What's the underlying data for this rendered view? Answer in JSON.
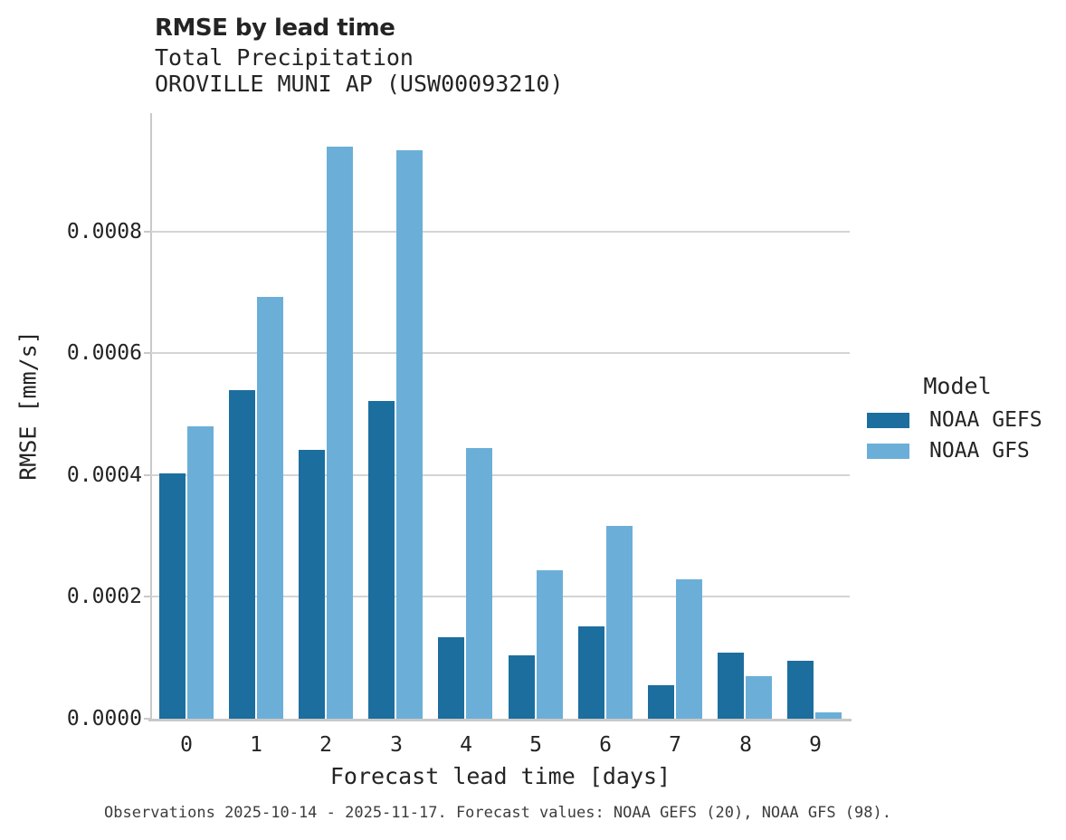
{
  "chart_data": {
    "type": "bar",
    "title": "RMSE by lead time",
    "subtitle_lines": [
      "Total Precipitation",
      "OROVILLE MUNI AP (USW00093210)"
    ],
    "xlabel": "Forecast lead time [days]",
    "ylabel": "RMSE [mm/s]",
    "categories": [
      "0",
      "1",
      "2",
      "3",
      "4",
      "5",
      "6",
      "7",
      "8",
      "9"
    ],
    "series": [
      {
        "name": "NOAA GEFS",
        "color": "#1c6e9e",
        "values": [
          0.000402,
          0.000539,
          0.000441,
          0.000522,
          0.000133,
          0.000104,
          0.000152,
          5.5e-05,
          0.000109,
          9.5e-05
        ]
      },
      {
        "name": "NOAA GFS",
        "color": "#6bafd8",
        "values": [
          0.00048,
          0.000693,
          0.000939,
          0.000933,
          0.000444,
          0.000243,
          0.000316,
          0.000229,
          7e-05,
          1e-05
        ]
      }
    ],
    "ylim": [
      0,
      0.000991
    ],
    "yticks": [
      0,
      0.0002,
      0.0004,
      0.0006,
      0.0008
    ],
    "ytick_labels": [
      "0.0000",
      "0.0002",
      "0.0004",
      "0.0006",
      "0.0008"
    ],
    "grid": "horizontal",
    "legend": {
      "title": "Model",
      "position": "center right"
    }
  },
  "caption": "Observations 2025-10-14 - 2025-11-17. Forecast values: NOAA GEFS (20), NOAA GFS (98).",
  "colors": {
    "noaa_gefs": "#1c6e9e",
    "noaa_gfs": "#6bafd8",
    "gridline": "#d4d4d4",
    "spine": "#c9c9c9",
    "text": "#242424",
    "caption_text": "#3d3d3d"
  }
}
